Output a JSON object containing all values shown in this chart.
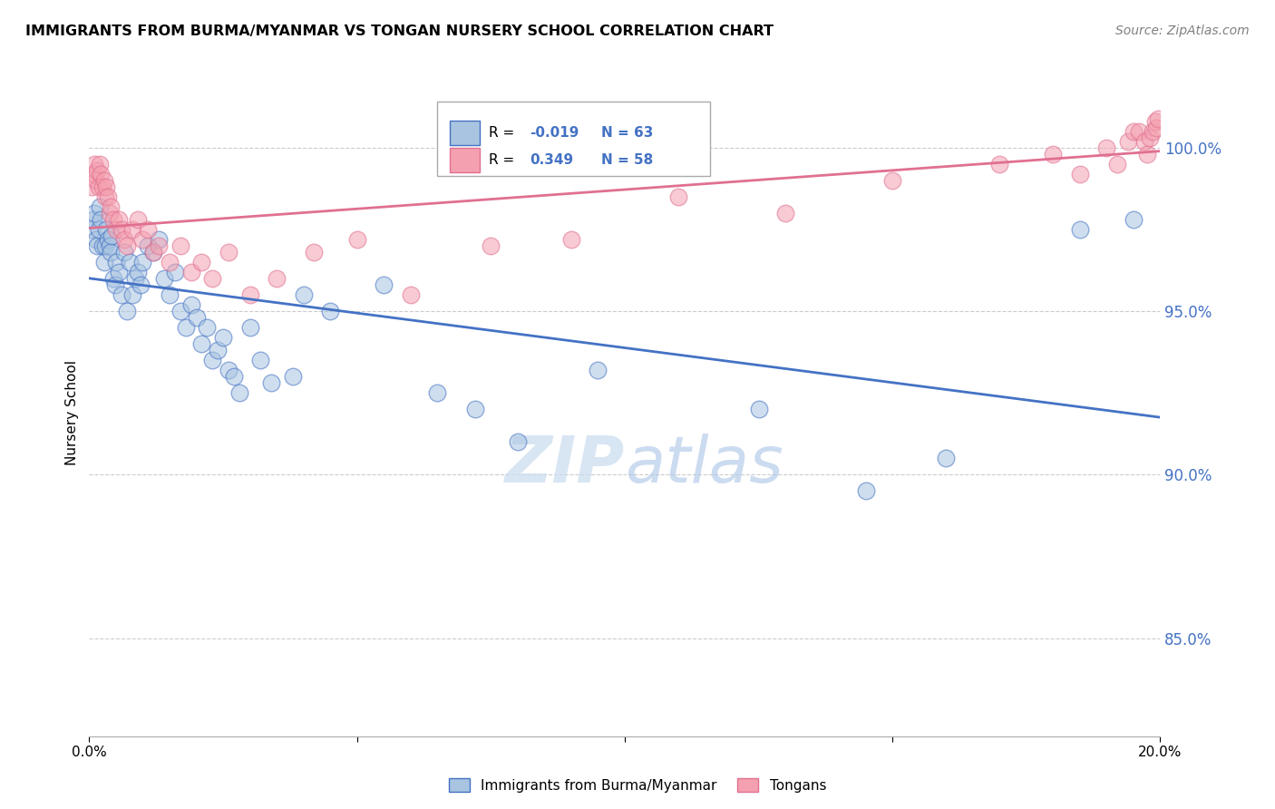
{
  "title": "IMMIGRANTS FROM BURMA/MYANMAR VS TONGAN NURSERY SCHOOL CORRELATION CHART",
  "source": "Source: ZipAtlas.com",
  "ylabel": "Nursery School",
  "right_yticks": [
    85.0,
    90.0,
    95.0,
    100.0
  ],
  "right_ytick_labels": [
    "85.0%",
    "90.0%",
    "95.0%",
    "100.0%"
  ],
  "xmin": 0.0,
  "xmax": 20.0,
  "ymin": 82.0,
  "ymax": 101.8,
  "legend_blue_label": "Immigrants from Burma/Myanmar",
  "legend_pink_label": "Tongans",
  "R_blue": "-0.019",
  "N_blue": "63",
  "R_pink": "0.349",
  "N_pink": "58",
  "blue_color": "#a8c4e0",
  "pink_color": "#f4a0b0",
  "blue_line_color": "#4472c4",
  "pink_line_color": "#e07090",
  "watermark_zip": "ZIP",
  "watermark_atlas": "atlas",
  "blue_x": [
    0.05,
    0.08,
    0.1,
    0.12,
    0.15,
    0.18,
    0.2,
    0.22,
    0.25,
    0.28,
    0.3,
    0.32,
    0.35,
    0.38,
    0.4,
    0.42,
    0.45,
    0.48,
    0.5,
    0.55,
    0.6,
    0.65,
    0.7,
    0.75,
    0.8,
    0.85,
    0.9,
    0.95,
    1.0,
    1.1,
    1.2,
    1.3,
    1.4,
    1.5,
    1.6,
    1.7,
    1.8,
    1.9,
    2.0,
    2.1,
    2.2,
    2.3,
    2.4,
    2.5,
    2.6,
    2.7,
    2.8,
    3.0,
    3.2,
    3.4,
    3.8,
    4.0,
    4.5,
    5.5,
    6.5,
    7.2,
    8.0,
    9.5,
    12.5,
    14.5,
    16.0,
    18.5,
    19.5
  ],
  "blue_y": [
    97.5,
    97.8,
    98.0,
    97.2,
    97.0,
    97.5,
    98.2,
    97.8,
    97.0,
    96.5,
    97.0,
    97.5,
    97.2,
    97.0,
    96.8,
    97.3,
    96.0,
    95.8,
    96.5,
    96.2,
    95.5,
    96.8,
    95.0,
    96.5,
    95.5,
    96.0,
    96.2,
    95.8,
    96.5,
    97.0,
    96.8,
    97.2,
    96.0,
    95.5,
    96.2,
    95.0,
    94.5,
    95.2,
    94.8,
    94.0,
    94.5,
    93.5,
    93.8,
    94.2,
    93.2,
    93.0,
    92.5,
    94.5,
    93.5,
    92.8,
    93.0,
    95.5,
    95.0,
    95.8,
    92.5,
    92.0,
    91.0,
    93.2,
    92.0,
    89.5,
    90.5,
    97.5,
    97.8
  ],
  "pink_x": [
    0.05,
    0.08,
    0.1,
    0.12,
    0.15,
    0.18,
    0.2,
    0.22,
    0.25,
    0.28,
    0.3,
    0.32,
    0.35,
    0.38,
    0.4,
    0.45,
    0.5,
    0.55,
    0.6,
    0.65,
    0.7,
    0.8,
    0.9,
    1.0,
    1.1,
    1.2,
    1.3,
    1.5,
    1.7,
    1.9,
    2.1,
    2.3,
    2.6,
    3.0,
    3.5,
    4.2,
    5.0,
    6.0,
    7.5,
    9.0,
    11.0,
    13.0,
    15.0,
    17.0,
    18.0,
    18.5,
    19.0,
    19.2,
    19.4,
    19.5,
    19.6,
    19.7,
    19.75,
    19.8,
    19.85,
    19.9,
    19.92,
    19.95
  ],
  "pink_y": [
    98.8,
    99.2,
    99.5,
    99.0,
    99.3,
    98.8,
    99.5,
    99.2,
    98.8,
    99.0,
    98.5,
    98.8,
    98.5,
    98.0,
    98.2,
    97.8,
    97.5,
    97.8,
    97.5,
    97.2,
    97.0,
    97.5,
    97.8,
    97.2,
    97.5,
    96.8,
    97.0,
    96.5,
    97.0,
    96.2,
    96.5,
    96.0,
    96.8,
    95.5,
    96.0,
    96.8,
    97.2,
    95.5,
    97.0,
    97.2,
    98.5,
    98.0,
    99.0,
    99.5,
    99.8,
    99.2,
    100.0,
    99.5,
    100.2,
    100.5,
    100.5,
    100.2,
    99.8,
    100.3,
    100.5,
    100.8,
    100.6,
    100.9
  ]
}
